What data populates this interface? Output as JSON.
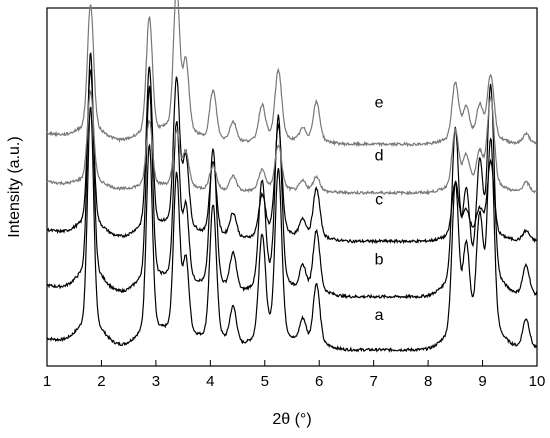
{
  "chart_data": {
    "type": "line",
    "xlabel": "2θ (°)",
    "ylabel": "Intensity (a.u.)",
    "xlim": [
      1,
      10
    ],
    "xticks": [
      1,
      2,
      3,
      4,
      5,
      6,
      7,
      8,
      9,
      10
    ],
    "yticks": false,
    "grid": false,
    "legend": "none",
    "peak_positions": [
      1.8,
      2.88,
      3.38,
      3.55,
      4.05,
      4.42,
      4.95,
      5.25,
      5.7,
      5.95,
      8.5,
      8.7,
      8.95,
      9.15,
      9.8
    ],
    "series": [
      {
        "name": "a",
        "color": "#000000",
        "baseline": 0.07,
        "background_decay": 0.05,
        "peak_heights": [
          0.92,
          0.78,
          0.65,
          0.3,
          0.55,
          0.15,
          0.42,
          0.68,
          0.1,
          0.25,
          0.62,
          0.34,
          0.45,
          0.78,
          0.12
        ]
      },
      {
        "name": "b",
        "color": "#000000",
        "baseline": 0.3,
        "background_decay": 0.05,
        "peak_heights": [
          0.92,
          0.8,
          0.64,
          0.3,
          0.56,
          0.15,
          0.42,
          0.68,
          0.1,
          0.25,
          0.62,
          0.34,
          0.45,
          0.78,
          0.12
        ]
      },
      {
        "name": "c",
        "color": "#000000",
        "baseline": 0.54,
        "background_decay": 0.05,
        "peak_heights": [
          0.64,
          0.66,
          0.6,
          0.28,
          0.3,
          0.1,
          0.16,
          0.44,
          0.07,
          0.2,
          0.22,
          0.1,
          0.1,
          0.3,
          0.04
        ]
      },
      {
        "name": "d",
        "color": "#777777",
        "baseline": 0.75,
        "background_decay": 0.05,
        "peak_heights": [
          0.37,
          0.27,
          0.22,
          0.14,
          0.1,
          0.06,
          0.08,
          0.18,
          0.04,
          0.06,
          0.23,
          0.12,
          0.13,
          0.36,
          0.04
        ]
      },
      {
        "name": "e",
        "color": "#777777",
        "baseline": 0.96,
        "background_decay": 0.05,
        "peak_heights": [
          0.52,
          0.48,
          0.58,
          0.28,
          0.2,
          0.08,
          0.14,
          0.28,
          0.05,
          0.16,
          0.23,
          0.12,
          0.13,
          0.26,
          0.04
        ]
      }
    ],
    "curve_labels": [
      {
        "text": "a",
        "x": 7.1,
        "y": 0.2
      },
      {
        "text": "b",
        "x": 7.1,
        "y": 0.44
      },
      {
        "text": "c",
        "x": 7.1,
        "y": 0.7
      },
      {
        "text": "d",
        "x": 7.1,
        "y": 0.89
      },
      {
        "text": "e",
        "x": 7.1,
        "y": 1.12
      }
    ]
  }
}
